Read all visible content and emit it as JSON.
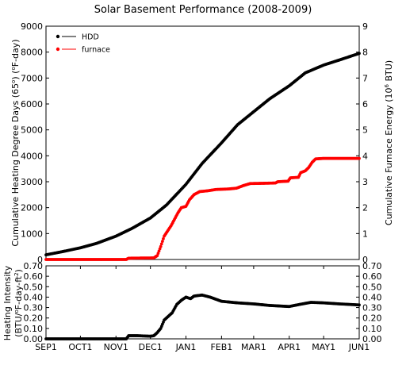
{
  "chart_data": [
    {
      "type": "scatter",
      "title": "Solar Basement Performance (2008-2009)",
      "xlabel": "",
      "x_ticks": [
        "SEP1",
        "OCT1",
        "NOV1",
        "DEC1",
        "JAN1",
        "FEB1",
        "MAR1",
        "APR1",
        "MAY1",
        "JUN1"
      ],
      "xlim": [
        "2008-09-01",
        "2009-06-01"
      ],
      "ylabel": "Cumulative Heating Degree Days (65°) (°F-day)",
      "ylim": [
        0,
        9000
      ],
      "y_ticks": [
        "0",
        "1000",
        "2000",
        "3000",
        "4000",
        "5000",
        "6000",
        "7000",
        "8000",
        "9000"
      ],
      "y2label": "Cumulative Furnace Energy (10⁶ BTU)",
      "y2lim": [
        0,
        9
      ],
      "y2_ticks": [
        "0",
        "1",
        "2",
        "3",
        "4",
        "5",
        "6",
        "7",
        "8",
        "9"
      ],
      "grid": false,
      "legend": "top-left",
      "series": [
        {
          "name": "HDD",
          "color": "#000000",
          "axis": "left",
          "points": [
            [
              "2008-09-01",
              180
            ],
            [
              "2008-09-15",
              300
            ],
            [
              "2008-10-01",
              450
            ],
            [
              "2008-10-15",
              620
            ],
            [
              "2008-11-01",
              900
            ],
            [
              "2008-11-15",
              1200
            ],
            [
              "2008-12-01",
              1600
            ],
            [
              "2008-12-15",
              2100
            ],
            [
              "2009-01-01",
              2900
            ],
            [
              "2009-01-15",
              3700
            ],
            [
              "2009-02-01",
              4500
            ],
            [
              "2009-02-15",
              5200
            ],
            [
              "2009-03-01",
              5700
            ],
            [
              "2009-03-15",
              6200
            ],
            [
              "2009-04-01",
              6700
            ],
            [
              "2009-04-15",
              7200
            ],
            [
              "2009-05-01",
              7500
            ],
            [
              "2009-05-15",
              7700
            ],
            [
              "2009-06-01",
              7950
            ]
          ]
        },
        {
          "name": "furnace",
          "color": "#ff0000",
          "axis": "right",
          "points": [
            [
              "2008-09-01",
              0
            ],
            [
              "2008-11-10",
              0
            ],
            [
              "2008-11-12",
              0.05
            ],
            [
              "2008-12-04",
              0.06
            ],
            [
              "2008-12-07",
              0.15
            ],
            [
              "2008-12-10",
              0.5
            ],
            [
              "2008-12-13",
              0.9
            ],
            [
              "2008-12-16",
              1.1
            ],
            [
              "2008-12-19",
              1.3
            ],
            [
              "2008-12-22",
              1.55
            ],
            [
              "2008-12-25",
              1.8
            ],
            [
              "2008-12-28",
              2.0
            ],
            [
              "2009-01-01",
              2.05
            ],
            [
              "2009-01-04",
              2.3
            ],
            [
              "2009-01-08",
              2.5
            ],
            [
              "2009-01-13",
              2.62
            ],
            [
              "2009-01-20",
              2.65
            ],
            [
              "2009-01-27",
              2.7
            ],
            [
              "2009-02-07",
              2.72
            ],
            [
              "2009-02-14",
              2.75
            ],
            [
              "2009-02-20",
              2.85
            ],
            [
              "2009-02-26",
              2.93
            ],
            [
              "2009-03-10",
              2.94
            ],
            [
              "2009-03-20",
              2.95
            ],
            [
              "2009-03-22",
              3.0
            ],
            [
              "2009-03-31",
              3.02
            ],
            [
              "2009-04-02",
              3.15
            ],
            [
              "2009-04-09",
              3.17
            ],
            [
              "2009-04-11",
              3.35
            ],
            [
              "2009-04-15",
              3.42
            ],
            [
              "2009-04-18",
              3.55
            ],
            [
              "2009-04-21",
              3.75
            ],
            [
              "2009-04-24",
              3.88
            ],
            [
              "2009-05-01",
              3.9
            ],
            [
              "2009-05-15",
              3.9
            ],
            [
              "2009-06-01",
              3.9
            ]
          ]
        }
      ]
    },
    {
      "type": "scatter",
      "title": "",
      "xlabel": "",
      "ylabel": "Heating Intensity (BTU/°F-day-ft²)",
      "ylim": [
        0,
        0.7
      ],
      "y_ticks": [
        "0.00",
        "0.10",
        "0.20",
        "0.30",
        "0.40",
        "0.50",
        "0.60",
        "0.70"
      ],
      "y2lim": [
        0,
        0.7
      ],
      "y2_ticks": [
        "0.00",
        "0.10",
        "0.20",
        "0.30",
        "0.40",
        "0.50",
        "0.60",
        "0.70"
      ],
      "grid": false,
      "series": [
        {
          "color": "#000000",
          "points": [
            [
              "2008-09-01",
              0
            ],
            [
              "2008-11-10",
              0
            ],
            [
              "2008-11-12",
              0.03
            ],
            [
              "2008-11-20",
              0.03
            ],
            [
              "2008-12-01",
              0.025
            ],
            [
              "2008-12-04",
              0.03
            ],
            [
              "2008-12-07",
              0.06
            ],
            [
              "2008-12-10",
              0.1
            ],
            [
              "2008-12-13",
              0.18
            ],
            [
              "2008-12-16",
              0.21
            ],
            [
              "2008-12-20",
              0.25
            ],
            [
              "2008-12-24",
              0.33
            ],
            [
              "2008-12-28",
              0.37
            ],
            [
              "2009-01-01",
              0.4
            ],
            [
              "2009-01-05",
              0.385
            ],
            [
              "2009-01-08",
              0.41
            ],
            [
              "2009-01-15",
              0.42
            ],
            [
              "2009-01-22",
              0.4
            ],
            [
              "2009-02-01",
              0.36
            ],
            [
              "2009-02-15",
              0.345
            ],
            [
              "2009-03-01",
              0.335
            ],
            [
              "2009-03-15",
              0.32
            ],
            [
              "2009-04-01",
              0.31
            ],
            [
              "2009-04-10",
              0.33
            ],
            [
              "2009-04-20",
              0.35
            ],
            [
              "2009-05-01",
              0.345
            ],
            [
              "2009-05-15",
              0.335
            ],
            [
              "2009-06-01",
              0.325
            ]
          ]
        }
      ]
    }
  ]
}
